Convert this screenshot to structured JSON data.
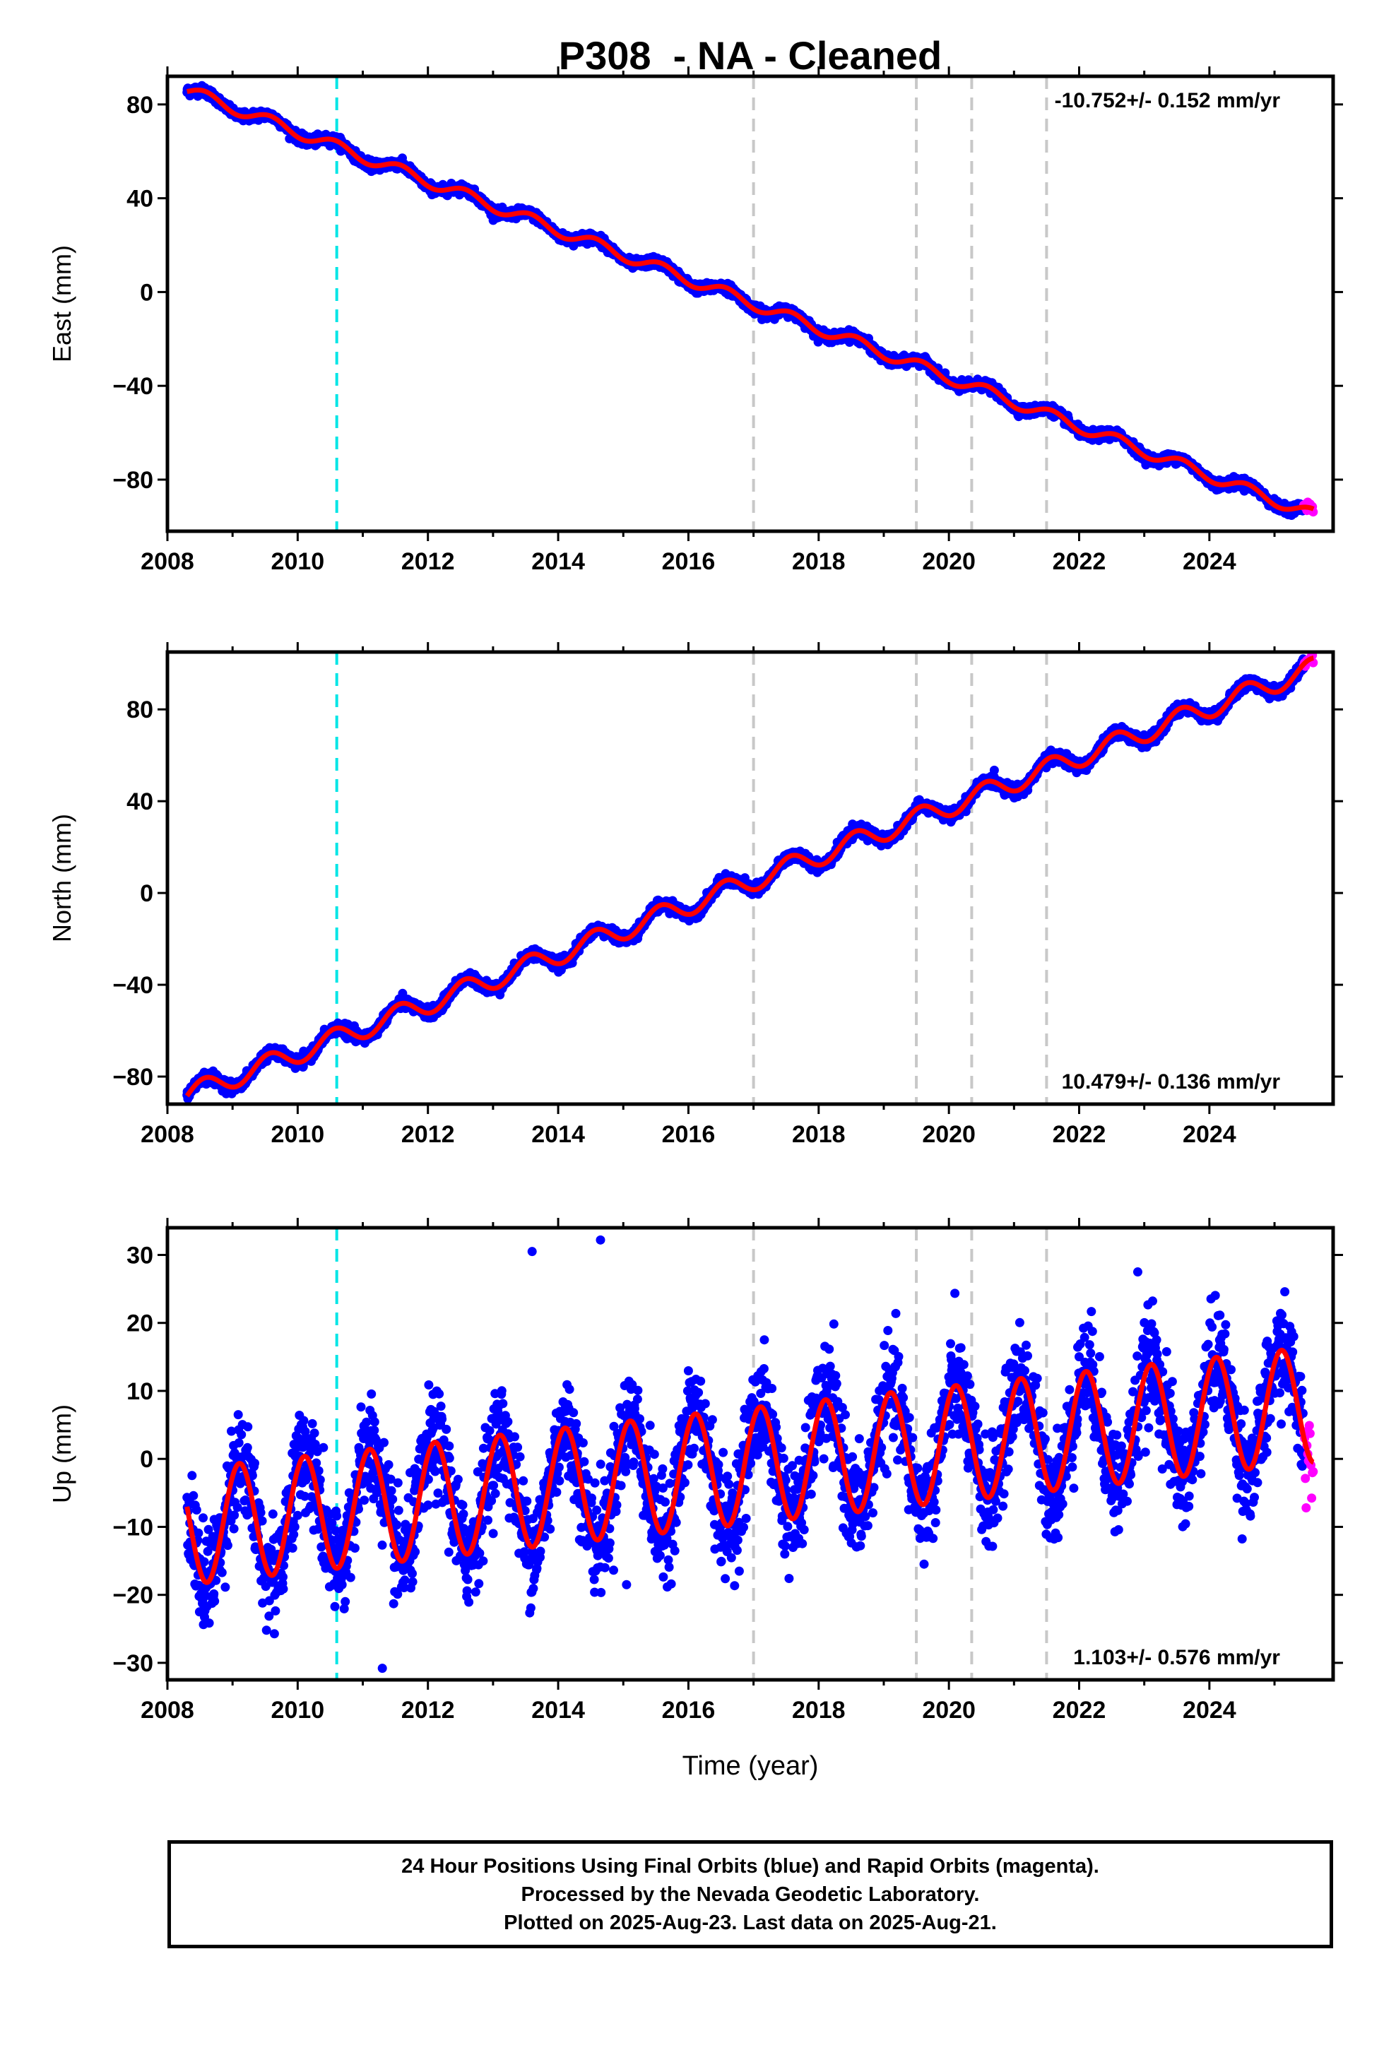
{
  "title": "P308  - NA - Cleaned",
  "colors": {
    "final_orbits": "#0000ff",
    "rapid_orbits": "#ff00ff",
    "model": "#ff0000",
    "event_cyan": "#00e5e5",
    "event_gray": "#c8c8c8"
  },
  "xlabel": "Time (year)",
  "x_ticks": [
    2008,
    2010,
    2012,
    2014,
    2016,
    2018,
    2020,
    2022,
    2024
  ],
  "xlim": [
    2008,
    2025.9
  ],
  "event_lines": [
    {
      "x": 2010.6,
      "color": "cyan"
    },
    {
      "x": 2017.0,
      "color": "gray"
    },
    {
      "x": 2019.5,
      "color": "gray"
    },
    {
      "x": 2020.35,
      "color": "gray"
    },
    {
      "x": 2021.5,
      "color": "gray"
    }
  ],
  "chart_data": [
    {
      "type": "scatter",
      "component": "east",
      "ylabel": "East (mm)",
      "ylim": [
        -102,
        92
      ],
      "y_ticks": [
        80,
        40,
        0,
        -40,
        -80
      ],
      "rate_label": "-10.752+/- 0.152 mm/yr",
      "rate_position": "top-right",
      "x_range": [
        2008.3,
        2025.6
      ],
      "start_value": 86,
      "end_value": -95,
      "seasonal_amplitude": 2.5,
      "seasonal_phase": 4.2,
      "scatter": 1.0,
      "series": [
        {
          "name": "Final Orbits",
          "color": "blue",
          "x_range": [
            2008.3,
            2025.45
          ]
        },
        {
          "name": "Rapid Orbits",
          "color": "magenta",
          "x_range": [
            2025.45,
            2025.6
          ]
        }
      ]
    },
    {
      "type": "scatter",
      "component": "north",
      "ylabel": "North (mm)",
      "ylim": [
        -92,
        105
      ],
      "y_ticks": [
        80,
        40,
        0,
        -40,
        -80
      ],
      "rate_label": "10.479+/- 0.136 mm/yr",
      "rate_position": "bottom-right",
      "x_range": [
        2008.3,
        2025.6
      ],
      "start_value": -88,
      "end_value": 98,
      "seasonal_amplitude": 4.5,
      "seasonal_phase": 4.3,
      "scatter": 1.2,
      "series": [
        {
          "name": "Final Orbits",
          "color": "blue",
          "x_range": [
            2008.3,
            2025.45
          ]
        },
        {
          "name": "Rapid Orbits",
          "color": "magenta",
          "x_range": [
            2025.45,
            2025.6
          ]
        }
      ]
    },
    {
      "type": "scatter",
      "component": "up",
      "ylabel": "Up (mm)",
      "ylim": [
        -32.5,
        34
      ],
      "y_ticks": [
        30,
        20,
        10,
        0,
        -10,
        -20,
        -30
      ],
      "rate_label": "1.103+/- 0.576 mm/yr",
      "rate_position": "bottom-right",
      "x_range": [
        2008.3,
        2025.6
      ],
      "start_value": -10,
      "end_value": 8,
      "seasonal_amplitude": 8.5,
      "seasonal_phase": 0.9,
      "scatter": 3.8,
      "outliers": [
        [
          2013.6,
          30.5
        ],
        [
          2014.65,
          32.2
        ],
        [
          2011.3,
          -30.8
        ],
        [
          2022.9,
          27.5
        ],
        [
          2015.05,
          -18.5
        ]
      ],
      "series": [
        {
          "name": "Final Orbits",
          "color": "blue",
          "x_range": [
            2008.3,
            2025.45
          ]
        },
        {
          "name": "Rapid Orbits",
          "color": "magenta",
          "x_range": [
            2025.45,
            2025.6
          ]
        }
      ]
    }
  ],
  "footer": {
    "line1": "24 Hour Positions Using Final Orbits (blue) and Rapid Orbits (magenta).",
    "line2": "Processed by the Nevada Geodetic Laboratory.",
    "line3": "Plotted on 2025-Aug-23. Last data on 2025-Aug-21."
  }
}
